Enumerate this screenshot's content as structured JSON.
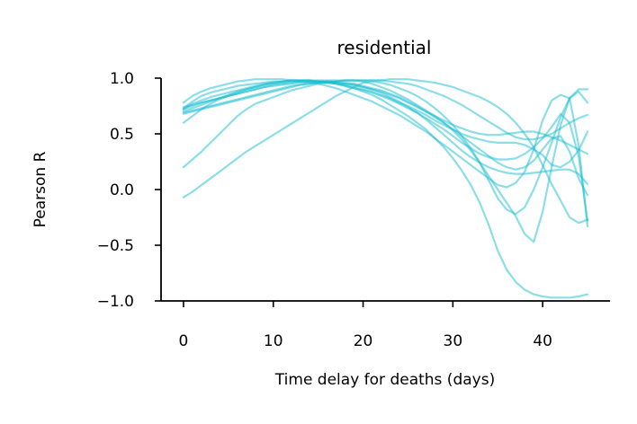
{
  "chart_data": {
    "type": "line",
    "title": "residential",
    "xlabel": "Time delay for deaths (days)",
    "ylabel": "Pearson R",
    "xlim": [
      -2.5,
      47.5
    ],
    "ylim": [
      -1.0,
      1.0
    ],
    "xticks": [
      0,
      10,
      20,
      30,
      40
    ],
    "xtick_labels": [
      "0",
      "10",
      "20",
      "30",
      "40"
    ],
    "yticks": [
      1.0,
      0.5,
      0.0,
      -0.5,
      -1.0
    ],
    "ytick_labels": [
      "1.0",
      "0.5",
      "0.0",
      "−0.5",
      "−1.0"
    ],
    "grid": false,
    "line_color": "#17becf",
    "line_opacity": 0.5,
    "x": [
      0,
      1,
      2,
      3,
      4,
      5,
      6,
      7,
      8,
      9,
      10,
      11,
      12,
      13,
      14,
      15,
      16,
      17,
      18,
      19,
      20,
      21,
      22,
      23,
      24,
      25,
      26,
      27,
      28,
      29,
      30,
      31,
      32,
      33,
      34,
      35,
      36,
      37,
      38,
      39,
      40,
      41,
      42,
      43,
      44,
      45
    ],
    "series": [
      {
        "values": [
          -0.07,
          -0.02,
          0.04,
          0.1,
          0.16,
          0.22,
          0.28,
          0.34,
          0.39,
          0.44,
          0.49,
          0.54,
          0.59,
          0.64,
          0.69,
          0.74,
          0.79,
          0.84,
          0.88,
          0.92,
          0.96,
          0.97,
          0.96,
          0.94,
          0.91,
          0.88,
          0.84,
          0.79,
          0.73,
          0.66,
          0.58,
          0.48,
          0.37,
          0.24,
          0.08,
          -0.08,
          -0.18,
          -0.22,
          -0.16,
          0.0,
          0.2,
          0.42,
          0.65,
          0.82,
          0.9,
          0.9
        ]
      },
      {
        "values": [
          0.2,
          0.27,
          0.34,
          0.42,
          0.5,
          0.58,
          0.66,
          0.72,
          0.77,
          0.8,
          0.83,
          0.86,
          0.89,
          0.91,
          0.93,
          0.95,
          0.96,
          0.97,
          0.98,
          0.98,
          0.97,
          0.95,
          0.92,
          0.89,
          0.85,
          0.81,
          0.76,
          0.71,
          0.66,
          0.6,
          0.53,
          0.45,
          0.35,
          0.24,
          0.12,
          0.0,
          -0.12,
          -0.24,
          -0.4,
          -0.47,
          -0.2,
          0.2,
          0.58,
          0.82,
          0.88,
          0.78
        ]
      },
      {
        "values": [
          0.6,
          0.66,
          0.72,
          0.77,
          0.81,
          0.84,
          0.87,
          0.9,
          0.92,
          0.94,
          0.96,
          0.97,
          0.98,
          0.98,
          0.98,
          0.97,
          0.96,
          0.95,
          0.93,
          0.91,
          0.88,
          0.85,
          0.81,
          0.76,
          0.71,
          0.66,
          0.6,
          0.54,
          0.46,
          0.38,
          0.28,
          0.17,
          0.04,
          -0.12,
          -0.32,
          -0.55,
          -0.72,
          -0.83,
          -0.9,
          -0.94,
          -0.96,
          -0.97,
          -0.97,
          -0.97,
          -0.96,
          -0.94
        ]
      },
      {
        "values": [
          0.78,
          0.84,
          0.88,
          0.91,
          0.93,
          0.95,
          0.97,
          0.98,
          0.99,
          0.99,
          0.99,
          0.99,
          0.98,
          0.97,
          0.96,
          0.95,
          0.93,
          0.91,
          0.88,
          0.85,
          0.82,
          0.79,
          0.75,
          0.71,
          0.67,
          0.62,
          0.57,
          0.52,
          0.46,
          0.4,
          0.34,
          0.28,
          0.22,
          0.16,
          0.1,
          0.04,
          0.02,
          0.06,
          0.16,
          0.36,
          0.62,
          0.8,
          0.85,
          0.82,
          0.4,
          -0.33
        ]
      },
      {
        "values": [
          0.73,
          0.79,
          0.84,
          0.87,
          0.89,
          0.91,
          0.93,
          0.94,
          0.95,
          0.96,
          0.97,
          0.97,
          0.98,
          0.98,
          0.98,
          0.98,
          0.98,
          0.98,
          0.98,
          0.98,
          0.98,
          0.98,
          0.98,
          0.99,
          0.99,
          0.99,
          0.98,
          0.97,
          0.96,
          0.94,
          0.92,
          0.89,
          0.86,
          0.83,
          0.79,
          0.74,
          0.68,
          0.6,
          0.5,
          0.38,
          0.22,
          0.05,
          -0.1,
          -0.25,
          -0.3,
          -0.27
        ]
      },
      {
        "values": [
          0.72,
          0.77,
          0.8,
          0.83,
          0.85,
          0.87,
          0.89,
          0.91,
          0.93,
          0.95,
          0.96,
          0.97,
          0.98,
          0.98,
          0.98,
          0.97,
          0.96,
          0.95,
          0.93,
          0.91,
          0.89,
          0.87,
          0.84,
          0.81,
          0.77,
          0.73,
          0.69,
          0.64,
          0.59,
          0.54,
          0.48,
          0.42,
          0.37,
          0.32,
          0.29,
          0.27,
          0.27,
          0.28,
          0.32,
          0.38,
          0.46,
          0.56,
          0.68,
          0.6,
          0.3,
          -0.28
        ]
      },
      {
        "values": [
          0.68,
          0.7,
          0.72,
          0.74,
          0.76,
          0.78,
          0.8,
          0.82,
          0.84,
          0.86,
          0.88,
          0.9,
          0.92,
          0.94,
          0.95,
          0.96,
          0.97,
          0.97,
          0.98,
          0.98,
          0.98,
          0.98,
          0.98,
          0.97,
          0.96,
          0.95,
          0.93,
          0.9,
          0.87,
          0.84,
          0.8,
          0.76,
          0.71,
          0.66,
          0.61,
          0.56,
          0.51,
          0.47,
          0.45,
          0.45,
          0.47,
          0.5,
          0.55,
          0.6,
          0.64,
          0.67
        ]
      },
      {
        "values": [
          0.7,
          0.73,
          0.76,
          0.79,
          0.82,
          0.85,
          0.88,
          0.9,
          0.92,
          0.94,
          0.95,
          0.96,
          0.97,
          0.97,
          0.97,
          0.97,
          0.96,
          0.95,
          0.94,
          0.92,
          0.9,
          0.88,
          0.85,
          0.82,
          0.78,
          0.75,
          0.71,
          0.67,
          0.62,
          0.58,
          0.54,
          0.5,
          0.47,
          0.45,
          0.43,
          0.42,
          0.42,
          0.42,
          0.4,
          0.36,
          0.31,
          0.22,
          0.2,
          0.25,
          0.35,
          0.52
        ]
      },
      {
        "values": [
          0.74,
          0.76,
          0.78,
          0.8,
          0.82,
          0.84,
          0.86,
          0.88,
          0.9,
          0.92,
          0.94,
          0.95,
          0.96,
          0.97,
          0.97,
          0.97,
          0.97,
          0.96,
          0.95,
          0.94,
          0.92,
          0.9,
          0.88,
          0.85,
          0.82,
          0.78,
          0.74,
          0.7,
          0.66,
          0.62,
          0.58,
          0.55,
          0.52,
          0.5,
          0.49,
          0.49,
          0.5,
          0.51,
          0.52,
          0.52,
          0.5,
          0.47,
          0.44,
          0.4,
          0.36,
          0.32
        ]
      },
      {
        "values": [
          0.69,
          0.71,
          0.73,
          0.75,
          0.77,
          0.79,
          0.81,
          0.83,
          0.85,
          0.87,
          0.89,
          0.91,
          0.93,
          0.94,
          0.95,
          0.96,
          0.96,
          0.96,
          0.95,
          0.94,
          0.92,
          0.9,
          0.87,
          0.83,
          0.79,
          0.74,
          0.69,
          0.63,
          0.56,
          0.49,
          0.42,
          0.35,
          0.29,
          0.24,
          0.2,
          0.17,
          0.15,
          0.14,
          0.14,
          0.15,
          0.16,
          0.17,
          0.18,
          0.18,
          0.14,
          0.05
        ]
      },
      {
        "values": [
          0.72,
          0.75,
          0.78,
          0.8,
          0.82,
          0.84,
          0.86,
          0.88,
          0.9,
          0.92,
          0.93,
          0.94,
          0.95,
          0.96,
          0.97,
          0.97,
          0.97,
          0.97,
          0.96,
          0.95,
          0.93,
          0.91,
          0.89,
          0.86,
          0.83,
          0.79,
          0.75,
          0.7,
          0.65,
          0.6,
          0.54,
          0.48,
          0.42,
          0.36,
          0.3,
          0.24,
          0.2,
          0.18,
          0.2,
          0.26,
          0.36,
          0.46,
          0.48,
          0.34,
          0.1,
          -0.05
        ]
      }
    ]
  }
}
